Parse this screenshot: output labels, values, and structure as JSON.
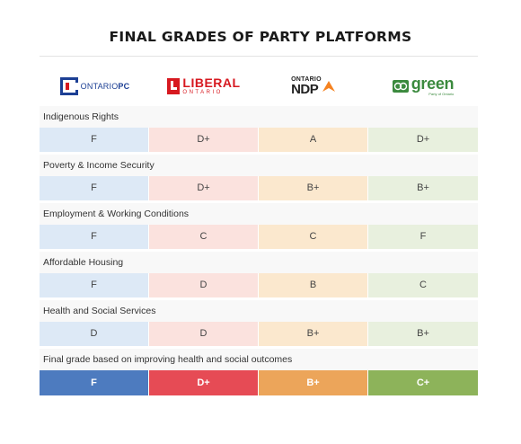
{
  "title": "FINAL GRADES OF PARTY PLATFORMS",
  "parties": [
    {
      "key": "pc",
      "logo_prefix": "ONTARIO",
      "logo_main": "PC"
    },
    {
      "key": "liberal",
      "logo_main": "LIBERAL",
      "logo_sub": "ONTARIO"
    },
    {
      "key": "ndp",
      "logo_sub": "ONTARIO",
      "logo_main": "NDP"
    },
    {
      "key": "green",
      "logo_main": "green",
      "logo_sub": "Party of Ontario"
    }
  ],
  "categories": [
    {
      "label": "Indigenous Rights",
      "grades": [
        "F",
        "D+",
        "A",
        "D+"
      ]
    },
    {
      "label": "Poverty & Income Security",
      "grades": [
        "F",
        "D+",
        "B+",
        "B+"
      ]
    },
    {
      "label": "Employment & Working Conditions",
      "grades": [
        "F",
        "C",
        "C",
        "F"
      ]
    },
    {
      "label": "Affordable Housing",
      "grades": [
        "F",
        "D",
        "B",
        "C"
      ]
    },
    {
      "label": "Health and Social Services",
      "grades": [
        "D",
        "D",
        "B+",
        "B+"
      ]
    },
    {
      "label": "Final grade based on improving health and social outcomes",
      "grades": [
        "F",
        "D+",
        "B+",
        "C+"
      ]
    }
  ],
  "colors": {
    "pc": "#4d7bbf",
    "liberal": "#e64b55",
    "ndp": "#eca55a",
    "green": "#8db35a"
  },
  "icons": [
    "ontario-pc-logo-icon",
    "liberal-logo-icon",
    "ndp-logo-icon",
    "green-party-logo-icon"
  ]
}
